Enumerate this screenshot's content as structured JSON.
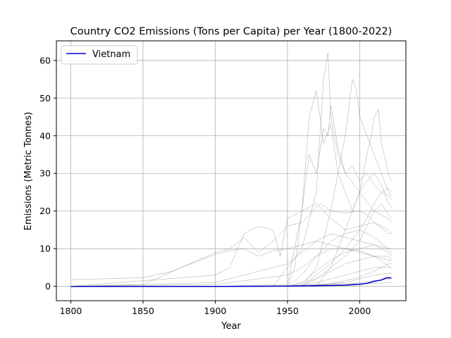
{
  "chart_data": {
    "type": "line",
    "title": "Country CO2 Emissions (Tons per Capita) per Year (1800-2022)",
    "xlabel": "Year",
    "ylabel": "Emissions (Metric Tonnes)",
    "xlim": [
      1790,
      2032
    ],
    "ylim": [
      -3.8,
      65.2
    ],
    "xticks": [
      1800,
      1850,
      1900,
      1950,
      2000
    ],
    "yticks": [
      0,
      10,
      20,
      30,
      40,
      50,
      60
    ],
    "grid": true,
    "legend": {
      "placement": "top-left",
      "entries": [
        "Vietnam"
      ]
    },
    "highlight_color": "#0000cc",
    "background_color": "#808080",
    "highlight_series": {
      "name": "Vietnam",
      "x": [
        1800,
        1850,
        1900,
        1950,
        1975,
        1990,
        2000,
        2005,
        2010,
        2015,
        2018,
        2020,
        2022
      ],
      "y": [
        0.0,
        0.0,
        0.0,
        0.05,
        0.2,
        0.3,
        0.55,
        0.8,
        1.35,
        1.7,
        2.2,
        2.3,
        2.2
      ]
    },
    "background_series": [
      {
        "x": [
          1800,
          1850,
          1900,
          1950,
          1960,
          1965,
          1970,
          1975,
          1980,
          1985,
          1990,
          1995,
          2000,
          2005,
          2010,
          2015,
          2020,
          2022
        ],
        "y": [
          0,
          0,
          0,
          0.5,
          20,
          45,
          52,
          38,
          43,
          30,
          25,
          20,
          25,
          28,
          30,
          27,
          22,
          21
        ]
      },
      {
        "x": [
          1800,
          1950,
          1955,
          1960,
          1965,
          1970,
          1975,
          1978,
          1980,
          1985,
          1990,
          1995,
          2000,
          2005,
          2010,
          2015,
          2020,
          2022
        ],
        "y": [
          0,
          0,
          5,
          20,
          35,
          30,
          42,
          40,
          48,
          37,
          30,
          32,
          28,
          30,
          27,
          25,
          24,
          23
        ]
      },
      {
        "x": [
          1800,
          1940,
          1950,
          1960,
          1970,
          1975,
          1978,
          1980,
          1985,
          1990,
          2000,
          2010,
          2020,
          2022
        ],
        "y": [
          0,
          0,
          5,
          10,
          25,
          55,
          62,
          45,
          35,
          30,
          25,
          20,
          18,
          17
        ]
      },
      {
        "x": [
          1800,
          1960,
          1970,
          1980,
          1990,
          1995,
          1998,
          2000,
          2005,
          2010,
          2015,
          2020,
          2022
        ],
        "y": [
          0,
          0,
          5,
          20,
          40,
          55,
          52,
          45,
          40,
          35,
          30,
          25,
          24
        ]
      },
      {
        "x": [
          1800,
          1970,
          1980,
          1990,
          2000,
          2005,
          2008,
          2010,
          2013,
          2015,
          2020,
          2022
        ],
        "y": [
          0,
          0,
          5,
          15,
          25,
          35,
          40,
          45,
          47,
          38,
          30,
          28
        ]
      },
      {
        "x": [
          1800,
          1850,
          1870,
          1900,
          1910,
          1920,
          1930,
          1940,
          1950,
          1960,
          1970,
          1980,
          1990,
          2000,
          2010,
          2020,
          2022
        ],
        "y": [
          1.8,
          2.3,
          4,
          8.5,
          9.5,
          10,
          8,
          9.5,
          10,
          11,
          12,
          11,
          10,
          9.5,
          8,
          5.5,
          5
        ]
      },
      {
        "x": [
          1800,
          1850,
          1900,
          1910,
          1920,
          1930,
          1940,
          1950,
          1960,
          1970,
          1973,
          1980,
          1990,
          2000,
          2005,
          2010,
          2020,
          2022
        ],
        "y": [
          0,
          0.5,
          9,
          10,
          13,
          9,
          12,
          16,
          17,
          21,
          22,
          20,
          19.5,
          20,
          19,
          17,
          14,
          14
        ]
      },
      {
        "x": [
          1800,
          1900,
          1910,
          1920,
          1930,
          1940,
          1945,
          1950,
          1960,
          1970,
          1980,
          1990,
          2000,
          2010,
          2020,
          2022
        ],
        "y": [
          0,
          3,
          5,
          14,
          16,
          15,
          8,
          18,
          20,
          22,
          18,
          15,
          16,
          17,
          15,
          14
        ]
      },
      {
        "x": [
          1800,
          1900,
          1950,
          1960,
          1970,
          1980,
          1990,
          2000,
          2010,
          2020,
          2022
        ],
        "y": [
          0,
          1,
          6,
          9,
          12,
          14,
          13,
          12,
          11,
          9,
          8
        ]
      },
      {
        "x": [
          1800,
          1900,
          1950,
          1960,
          1970,
          1980,
          1990,
          2000,
          2010,
          2020,
          2022
        ],
        "y": [
          0,
          0.5,
          3,
          5,
          8,
          10,
          10,
          9,
          8,
          7,
          7
        ]
      },
      {
        "x": [
          1800,
          1950,
          1960,
          1970,
          1980,
          1990,
          2000,
          2010,
          2020,
          2022
        ],
        "y": [
          0,
          0,
          3,
          8,
          12,
          14,
          15,
          13,
          10,
          9
        ]
      },
      {
        "x": [
          1800,
          1950,
          1960,
          1970,
          1980,
          1990,
          2000,
          2010,
          2020,
          2022
        ],
        "y": [
          0,
          0,
          1,
          4,
          7,
          9,
          10,
          11,
          10,
          10
        ]
      },
      {
        "x": [
          1800,
          1950,
          1970,
          1980,
          1990,
          2000,
          2005,
          2010,
          2015,
          2020,
          2022
        ],
        "y": [
          0,
          0,
          2,
          5,
          8,
          12,
          16,
          20,
          22,
          19,
          18
        ]
      },
      {
        "x": [
          1800,
          1960,
          1970,
          1980,
          1990,
          2000,
          2005,
          2010,
          2015,
          2020,
          2022
        ],
        "y": [
          0,
          0,
          3,
          6,
          10,
          15,
          18,
          22,
          25,
          26,
          25
        ]
      },
      {
        "x": [
          1800,
          1960,
          1970,
          1980,
          1990,
          2000,
          2010,
          2020,
          2022
        ],
        "y": [
          0,
          0,
          2,
          4,
          6,
          7,
          8,
          8,
          7
        ]
      },
      {
        "x": [
          1800,
          1950,
          1970,
          1980,
          1990,
          2000,
          2010,
          2020,
          2022
        ],
        "y": [
          0,
          0,
          1,
          2,
          3,
          4,
          5,
          5,
          5
        ]
      },
      {
        "x": [
          1800,
          1950,
          1970,
          1990,
          2000,
          2010,
          2020,
          2022
        ],
        "y": [
          0,
          0,
          0.5,
          1,
          2,
          3,
          3.5,
          3.5
        ]
      },
      {
        "x": [
          1800,
          1950,
          1970,
          1990,
          2000,
          2010,
          2020,
          2022
        ],
        "y": [
          0,
          0,
          0.3,
          0.6,
          1,
          1.5,
          2,
          2
        ]
      },
      {
        "x": [
          1800,
          1960,
          1975,
          1990,
          2000,
          2010,
          2020,
          2022
        ],
        "y": [
          0,
          0,
          0.5,
          1.5,
          2.5,
          4,
          6,
          6
        ]
      },
      {
        "x": [
          1800,
          1900,
          1950,
          1970,
          1990,
          2010,
          2022
        ],
        "y": [
          0,
          0,
          0.2,
          0.4,
          0.6,
          0.8,
          1
        ]
      }
    ]
  }
}
